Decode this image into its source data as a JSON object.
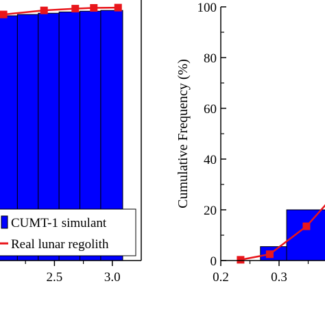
{
  "chart_data": [
    {
      "type": "bar",
      "panel": "left",
      "xlabel": "",
      "ylabel": "",
      "xlim": [
        2.0,
        3.25
      ],
      "ylim": [
        0,
        100
      ],
      "x_ticks": [
        "2.5",
        "3.0"
      ],
      "x_tick_values": [
        2.5,
        3.0
      ],
      "grid": false,
      "legend": {
        "placement": "bottom-right",
        "entries": [
          "CUMT-1 simulant",
          "Real lunar regolith"
        ]
      },
      "series": [
        {
          "name": "CUMT-1 simulant",
          "kind": "bar",
          "color": "#0000FF",
          "bars": [
            {
              "x0": 2.0,
              "x1": 2.18,
              "value": 96.5
            },
            {
              "x0": 2.18,
              "x1": 2.36,
              "value": 97.0
            },
            {
              "x0": 2.36,
              "x1": 2.54,
              "value": 97.5
            },
            {
              "x0": 2.54,
              "x1": 2.72,
              "value": 98.0
            },
            {
              "x0": 2.72,
              "x1": 2.9,
              "value": 98.3
            },
            {
              "x0": 2.9,
              "x1": 3.09,
              "value": 98.6
            }
          ]
        },
        {
          "name": "Real lunar regolith",
          "kind": "line",
          "color": "#E8161B",
          "x": [
            2.06,
            2.41,
            2.68,
            2.84,
            3.05
          ],
          "y": [
            97.0,
            98.6,
            99.3,
            99.6,
            99.7
          ]
        }
      ]
    },
    {
      "type": "bar",
      "panel": "right",
      "xlabel": "",
      "ylabel": "Cumulative Frequency (%)",
      "xlim": [
        0.2,
        0.38
      ],
      "ylim": [
        0,
        100
      ],
      "x_ticks": [
        "0.2",
        "0.3"
      ],
      "x_tick_values": [
        0.2,
        0.3
      ],
      "y_ticks": [
        "0",
        "20",
        "40",
        "60",
        "80",
        "100"
      ],
      "y_tick_values": [
        0,
        20,
        40,
        60,
        80,
        100
      ],
      "grid": false,
      "series": [
        {
          "name": "CUMT-1 simulant",
          "kind": "bar",
          "color": "#0000FF",
          "bars": [
            {
              "x0": 0.268,
              "x1": 0.313,
              "value": 5.5
            },
            {
              "x0": 0.313,
              "x1": 0.38,
              "value": 20.0
            }
          ]
        },
        {
          "name": "Real lunar regolith",
          "kind": "line",
          "color": "#E8161B",
          "x": [
            0.234,
            0.284,
            0.347,
            0.38
          ],
          "y": [
            0.3,
            2.5,
            13.5,
            22.0
          ]
        }
      ]
    }
  ]
}
